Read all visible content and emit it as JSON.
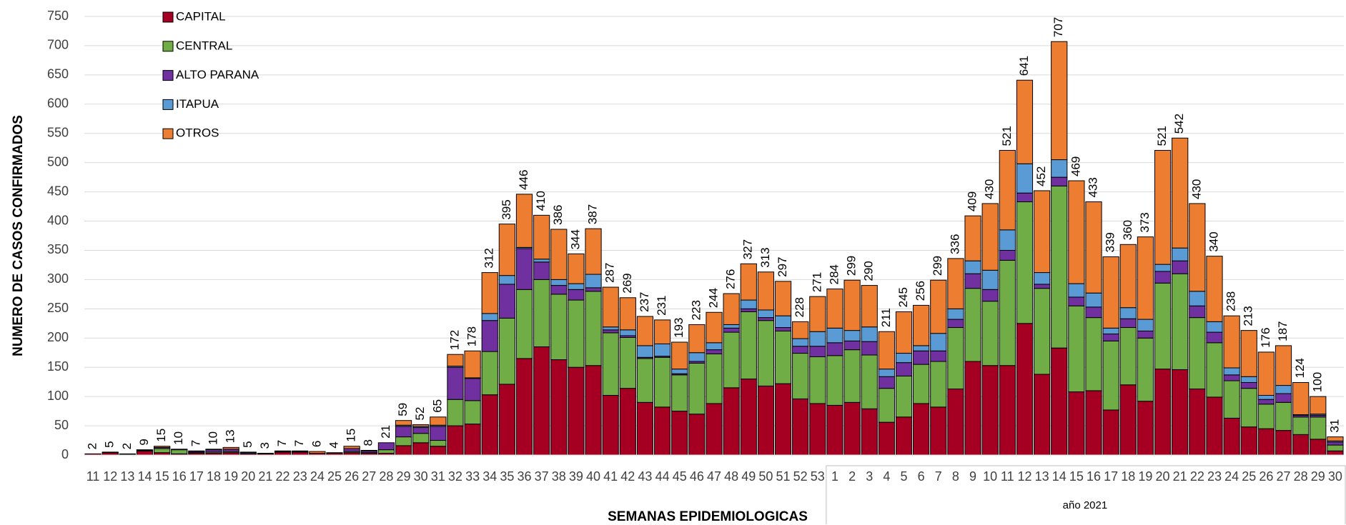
{
  "chart_data": {
    "type": "stacked_bar",
    "y_label": "NUMERO DE CASOS CONFIRMADOS",
    "x_label": "SEMANAS EPIDEMIOLOGICAS",
    "group_label": "año 2021",
    "ylim": [
      0,
      750
    ],
    "yticks": [
      0,
      50,
      100,
      150,
      200,
      250,
      300,
      350,
      400,
      450,
      500,
      550,
      600,
      650,
      700,
      750
    ],
    "grid": true,
    "legend": "top-left",
    "categories": [
      "11",
      "12",
      "13",
      "14",
      "15",
      "16",
      "17",
      "18",
      "19",
      "20",
      "21",
      "22",
      "23",
      "24",
      "25",
      "26",
      "27",
      "28",
      "29",
      "30",
      "31",
      "32",
      "33",
      "34",
      "35",
      "36",
      "37",
      "38",
      "39",
      "40",
      "41",
      "42",
      "43",
      "44",
      "45",
      "46",
      "47",
      "48",
      "49",
      "50",
      "51",
      "52",
      "53",
      "1",
      "2",
      "3",
      "4",
      "5",
      "6",
      "7",
      "8",
      "9",
      "10",
      "11",
      "12",
      "13",
      "14",
      "15",
      "16",
      "17",
      "18",
      "19",
      "20",
      "21",
      "22",
      "23",
      "24",
      "25",
      "26",
      "27",
      "28",
      "29",
      "30"
    ],
    "totals": [
      2,
      5,
      2,
      9,
      15,
      10,
      7,
      10,
      13,
      5,
      3,
      7,
      7,
      6,
      4,
      15,
      8,
      21,
      59,
      52,
      65,
      172,
      178,
      312,
      395,
      446,
      410,
      386,
      344,
      387,
      287,
      269,
      237,
      231,
      193,
      223,
      244,
      276,
      327,
      313,
      297,
      228,
      271,
      284,
      299,
      290,
      211,
      245,
      256,
      299,
      336,
      409,
      430,
      521,
      641,
      452,
      707,
      469,
      433,
      339,
      360,
      373,
      521,
      542,
      430,
      340,
      238,
      213,
      176,
      187,
      124,
      100,
      31
    ],
    "series": [
      {
        "name": "CAPITAL",
        "color": "#a50021",
        "values": [
          2,
          4,
          1,
          7,
          4,
          2,
          3,
          3,
          4,
          2,
          2,
          5,
          5,
          3,
          3,
          4,
          3,
          3,
          16,
          21,
          15,
          50,
          53,
          103,
          121,
          165,
          185,
          163,
          150,
          153,
          102,
          114,
          90,
          82,
          75,
          70,
          88,
          115,
          130,
          118,
          122,
          96,
          88,
          85,
          90,
          79,
          56,
          65,
          88,
          82,
          113,
          160,
          153,
          153,
          225,
          138,
          183,
          108,
          110,
          77,
          120,
          92,
          147,
          146,
          113,
          99,
          63,
          48,
          45,
          42,
          35,
          27,
          7
        ]
      },
      {
        "name": "CENTRAL",
        "color": "#70ad47",
        "values": [
          0,
          0,
          0,
          1,
          7,
          7,
          1,
          2,
          2,
          0,
          0,
          1,
          1,
          0,
          0,
          2,
          1,
          6,
          15,
          16,
          10,
          45,
          40,
          74,
          113,
          118,
          115,
          112,
          115,
          127,
          107,
          87,
          75,
          85,
          62,
          87,
          85,
          95,
          115,
          112,
          90,
          78,
          80,
          85,
          90,
          92,
          58,
          70,
          67,
          78,
          105,
          125,
          110,
          180,
          208,
          147,
          277,
          147,
          125,
          118,
          98,
          108,
          147,
          164,
          122,
          93,
          64,
          66,
          42,
          48,
          30,
          38,
          10
        ]
      },
      {
        "name": "ALTO PARANA",
        "color": "#7030a0",
        "values": [
          0,
          0,
          0,
          1,
          2,
          0,
          2,
          4,
          4,
          2,
          0,
          0,
          0,
          0,
          0,
          5,
          3,
          12,
          18,
          10,
          24,
          55,
          38,
          53,
          58,
          70,
          30,
          15,
          18,
          6,
          5,
          3,
          2,
          2,
          2,
          3,
          7,
          7,
          5,
          5,
          6,
          12,
          18,
          22,
          15,
          23,
          20,
          23,
          23,
          18,
          14,
          25,
          20,
          17,
          15,
          7,
          15,
          15,
          18,
          12,
          15,
          12,
          20,
          22,
          20,
          18,
          10,
          10,
          8,
          15,
          3,
          3,
          5
        ]
      },
      {
        "name": "ITAPUA",
        "color": "#5b9bd5",
        "values": [
          0,
          0,
          0,
          0,
          0,
          0,
          0,
          0,
          0,
          0,
          0,
          0,
          0,
          0,
          0,
          0,
          0,
          0,
          2,
          2,
          2,
          2,
          1,
          12,
          15,
          2,
          5,
          10,
          10,
          23,
          5,
          10,
          20,
          21,
          8,
          15,
          12,
          6,
          15,
          13,
          20,
          13,
          25,
          25,
          18,
          25,
          13,
          16,
          9,
          30,
          18,
          22,
          33,
          35,
          50,
          20,
          30,
          23,
          24,
          10,
          19,
          20,
          12,
          22,
          25,
          18,
          12,
          10,
          7,
          14,
          1,
          2,
          2
        ]
      },
      {
        "name": "OTROS",
        "color": "#ed7d31",
        "values": [
          0,
          1,
          1,
          0,
          2,
          1,
          1,
          1,
          3,
          1,
          1,
          1,
          1,
          3,
          1,
          4,
          1,
          0,
          8,
          3,
          14,
          20,
          46,
          70,
          88,
          91,
          75,
          86,
          51,
          78,
          68,
          55,
          50,
          41,
          46,
          48,
          52,
          53,
          62,
          65,
          59,
          29,
          60,
          67,
          86,
          71,
          64,
          71,
          69,
          91,
          86,
          77,
          114,
          136,
          143,
          140,
          202,
          176,
          156,
          122,
          108,
          141,
          195,
          188,
          150,
          112,
          89,
          79,
          74,
          68,
          55,
          30,
          7
        ]
      }
    ]
  }
}
